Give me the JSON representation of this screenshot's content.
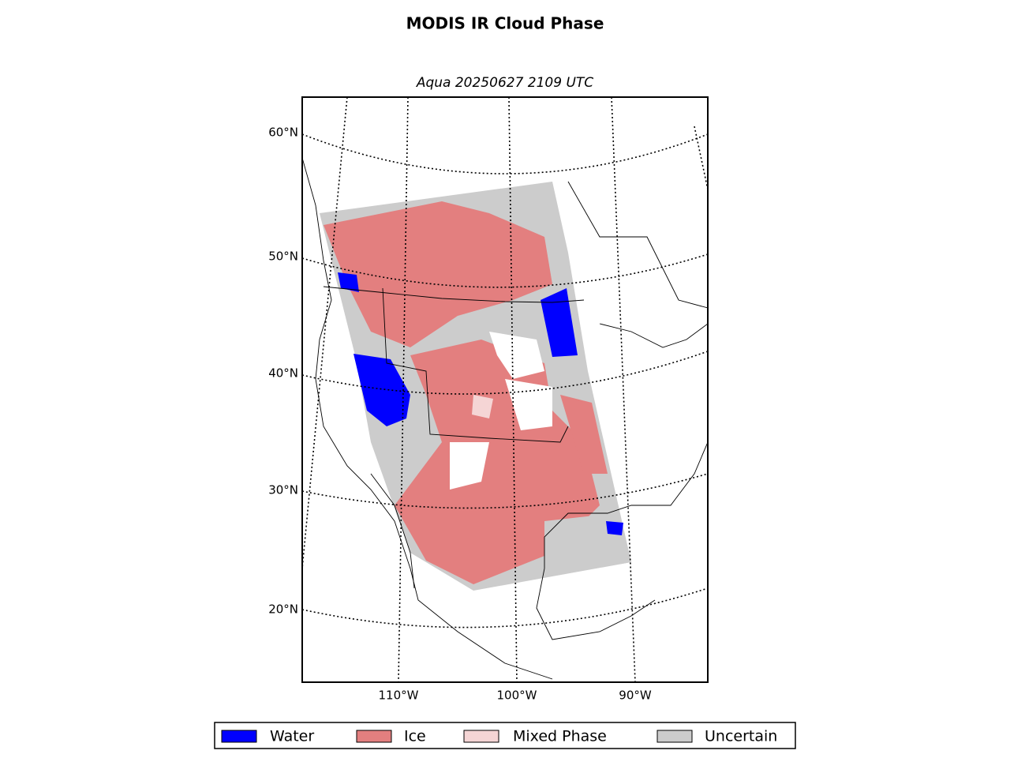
{
  "title": "MODIS IR Cloud Phase",
  "subtitle": "Aqua 20250627 2109 UTC",
  "lat_labels": [
    "60°N",
    "50°N",
    "40°N",
    "30°N",
    "20°N"
  ],
  "lon_labels": [
    "110°W",
    "100°W",
    "90°W"
  ],
  "legend": [
    {
      "label": "Water",
      "color": "#0000ff"
    },
    {
      "label": "Ice",
      "color": "#e37f7f"
    },
    {
      "label": "Mixed Phase",
      "color": "#f5d5d5"
    },
    {
      "label": "Uncertain",
      "color": "#cccccc"
    }
  ]
}
